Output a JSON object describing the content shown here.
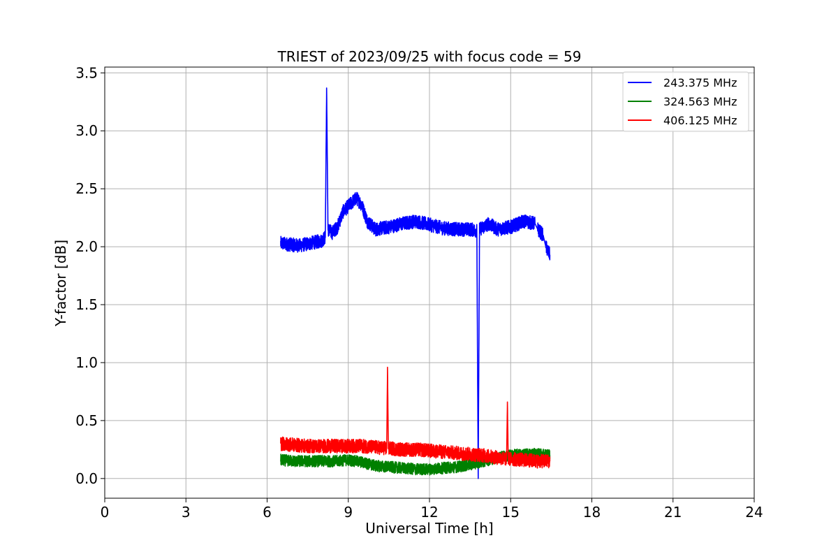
{
  "chart_data": {
    "type": "line",
    "title": "TRIEST of 2023/09/25 with focus code = 59",
    "xlabel": "Universal Time [h]",
    "ylabel": "Y-factor [dB]",
    "xlim": [
      0,
      24
    ],
    "ylim": [
      -0.17,
      3.55
    ],
    "xticks": [
      0,
      3,
      6,
      9,
      12,
      15,
      18,
      21,
      24
    ],
    "xtick_labels": [
      "0",
      "3",
      "6",
      "9",
      "12",
      "15",
      "18",
      "21",
      "24"
    ],
    "yticks": [
      0.0,
      0.5,
      1.0,
      1.5,
      2.0,
      2.5,
      3.0,
      3.5
    ],
    "ytick_labels": [
      "0.0",
      "0.5",
      "1.0",
      "1.5",
      "2.0",
      "2.5",
      "3.0",
      "3.5"
    ],
    "grid": true,
    "legend_position": "top-right",
    "series": [
      {
        "name": "243.375 MHz",
        "color": "#0000ff",
        "noise": 0.06,
        "points": [
          [
            6.5,
            2.03
          ],
          [
            6.8,
            2.02
          ],
          [
            7.2,
            2.01
          ],
          [
            7.6,
            2.03
          ],
          [
            8.0,
            2.05
          ],
          [
            8.15,
            2.08
          ],
          [
            8.2,
            3.37
          ],
          [
            8.25,
            2.15
          ],
          [
            8.4,
            2.12
          ],
          [
            8.6,
            2.17
          ],
          [
            8.8,
            2.3
          ],
          [
            9.0,
            2.35
          ],
          [
            9.3,
            2.42
          ],
          [
            9.5,
            2.36
          ],
          [
            9.7,
            2.22
          ],
          [
            10.0,
            2.15
          ],
          [
            10.5,
            2.17
          ],
          [
            11.0,
            2.2
          ],
          [
            11.5,
            2.22
          ],
          [
            12.0,
            2.19
          ],
          [
            12.5,
            2.16
          ],
          [
            13.0,
            2.15
          ],
          [
            13.5,
            2.15
          ],
          [
            13.75,
            2.14
          ],
          [
            13.8,
            0.0
          ],
          [
            13.85,
            2.15
          ],
          [
            14.0,
            2.17
          ],
          [
            14.2,
            2.2
          ],
          [
            14.5,
            2.15
          ],
          [
            15.0,
            2.17
          ],
          [
            15.5,
            2.22
          ],
          [
            15.9,
            2.2
          ],
          [
            16.0,
            2.15
          ],
          [
            16.2,
            2.1
          ],
          [
            16.3,
            2.0
          ],
          [
            16.45,
            1.93
          ]
        ]
      },
      {
        "name": "324.563 MHz",
        "color": "#008000",
        "noise": 0.05,
        "points": [
          [
            6.5,
            0.16
          ],
          [
            7.0,
            0.15
          ],
          [
            7.5,
            0.15
          ],
          [
            8.0,
            0.15
          ],
          [
            8.5,
            0.15
          ],
          [
            9.0,
            0.16
          ],
          [
            9.5,
            0.14
          ],
          [
            10.0,
            0.11
          ],
          [
            10.5,
            0.1
          ],
          [
            11.0,
            0.09
          ],
          [
            11.5,
            0.08
          ],
          [
            12.0,
            0.08
          ],
          [
            12.5,
            0.09
          ],
          [
            13.0,
            0.1
          ],
          [
            13.5,
            0.12
          ],
          [
            14.0,
            0.15
          ],
          [
            14.5,
            0.18
          ],
          [
            15.0,
            0.2
          ],
          [
            15.5,
            0.21
          ],
          [
            16.0,
            0.21
          ],
          [
            16.45,
            0.2
          ]
        ]
      },
      {
        "name": "406.125 MHz",
        "color": "#ff0000",
        "noise": 0.06,
        "points": [
          [
            6.5,
            0.3
          ],
          [
            7.0,
            0.29
          ],
          [
            7.5,
            0.28
          ],
          [
            8.0,
            0.28
          ],
          [
            8.5,
            0.28
          ],
          [
            9.0,
            0.28
          ],
          [
            9.5,
            0.28
          ],
          [
            10.0,
            0.27
          ],
          [
            10.42,
            0.26
          ],
          [
            10.45,
            0.96
          ],
          [
            10.48,
            0.26
          ],
          [
            11.0,
            0.25
          ],
          [
            11.5,
            0.25
          ],
          [
            12.0,
            0.24
          ],
          [
            12.5,
            0.23
          ],
          [
            13.0,
            0.22
          ],
          [
            13.5,
            0.21
          ],
          [
            14.0,
            0.2
          ],
          [
            14.5,
            0.18
          ],
          [
            14.85,
            0.17
          ],
          [
            14.88,
            0.66
          ],
          [
            14.91,
            0.17
          ],
          [
            15.5,
            0.16
          ],
          [
            16.0,
            0.15
          ],
          [
            16.45,
            0.15
          ]
        ]
      }
    ]
  }
}
